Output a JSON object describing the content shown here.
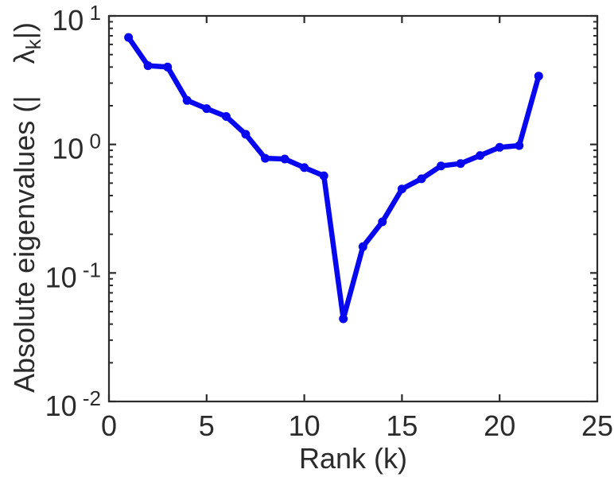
{
  "figure": {
    "background": "#ffffff",
    "axis_color": "#2b2b2b",
    "text_color": "#2b2b2b"
  },
  "chart_data": {
    "type": "line",
    "title": "",
    "xlabel": "Rank (k)",
    "ylabel_prefix": "Absolute eigenvalues (|    ",
    "ylabel_symbol": "λ",
    "ylabel_subscript": "k",
    "ylabel_suffix": "|)",
    "x": [
      1,
      2,
      3,
      4,
      5,
      6,
      7,
      8,
      9,
      10,
      11,
      12,
      13,
      14,
      15,
      16,
      17,
      18,
      19,
      20,
      21,
      22
    ],
    "y": [
      6.8,
      4.1,
      4.0,
      2.2,
      1.9,
      1.65,
      1.2,
      0.78,
      0.77,
      0.66,
      0.57,
      0.044,
      0.16,
      0.25,
      0.45,
      0.54,
      0.68,
      0.71,
      0.82,
      0.95,
      0.98,
      3.4
    ],
    "xlim": [
      0,
      25
    ],
    "ylim": [
      0.01,
      10
    ],
    "xscale": "linear",
    "yscale": "log",
    "x_ticks": [
      "0",
      "5",
      "10",
      "15",
      "20",
      "25"
    ],
    "x_tick_values": [
      0,
      5,
      10,
      15,
      20,
      25
    ],
    "y_tick_base": "10",
    "y_tick_exponents": [
      "1",
      "0",
      "-1",
      "-2"
    ],
    "y_tick_values": [
      10,
      1,
      0.1,
      0.01
    ],
    "grid": false,
    "legend": null,
    "line_color": "#0808f0",
    "marker": "dot"
  }
}
